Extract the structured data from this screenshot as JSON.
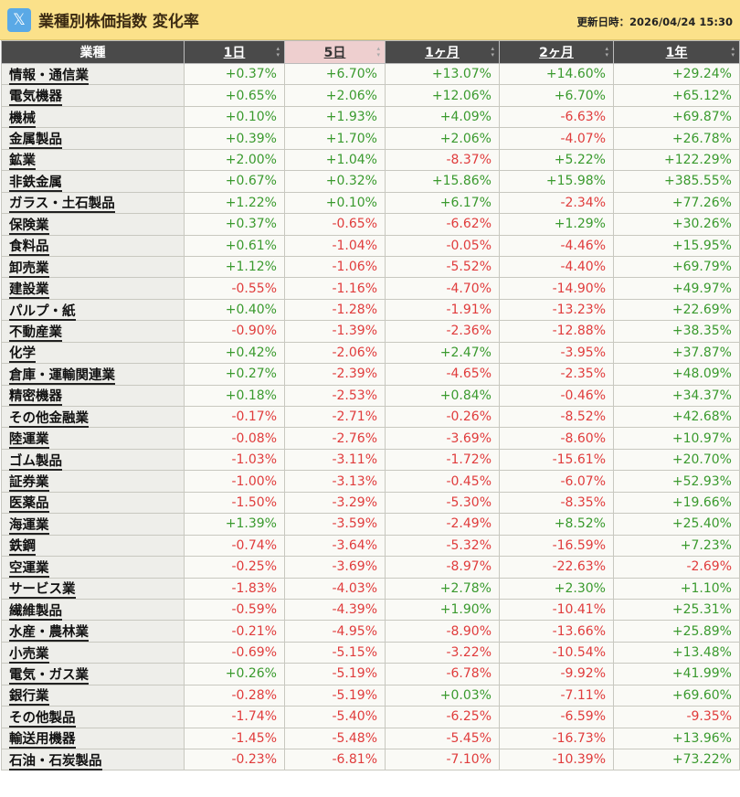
{
  "header": {
    "logo_icon": "x-icon",
    "logo_text": "𝕏",
    "title": "業種別株価指数 変化率",
    "updated": "更新日時：2026/04/24 15:30"
  },
  "colors": {
    "positive": "#3a9a2e",
    "negative": "#e03c3c",
    "header_bg": "#fbe18a",
    "selected_column": "#eecfcf"
  },
  "table": {
    "columns": [
      "業種",
      "1日",
      "5日",
      "1ヶ月",
      "2ヶ月",
      "1年"
    ],
    "sorted_column": "5日",
    "rows": [
      [
        "情報・通信業",
        "+0.37%",
        "+6.70%",
        "+13.07%",
        "+14.60%",
        "+29.24%"
      ],
      [
        "電気機器",
        "+0.65%",
        "+2.06%",
        "+12.06%",
        "+6.70%",
        "+65.12%"
      ],
      [
        "機械",
        "+0.10%",
        "+1.93%",
        "+4.09%",
        "-6.63%",
        "+69.87%"
      ],
      [
        "金属製品",
        "+0.39%",
        "+1.70%",
        "+2.06%",
        "-4.07%",
        "+26.78%"
      ],
      [
        "鉱業",
        "+2.00%",
        "+1.04%",
        "-8.37%",
        "+5.22%",
        "+122.29%"
      ],
      [
        "非鉄金属",
        "+0.67%",
        "+0.32%",
        "+15.86%",
        "+15.98%",
        "+385.55%"
      ],
      [
        "ガラス・土石製品",
        "+1.22%",
        "+0.10%",
        "+6.17%",
        "-2.34%",
        "+77.26%"
      ],
      [
        "保険業",
        "+0.37%",
        "-0.65%",
        "-6.62%",
        "+1.29%",
        "+30.26%"
      ],
      [
        "食料品",
        "+0.61%",
        "-1.04%",
        "-0.05%",
        "-4.46%",
        "+15.95%"
      ],
      [
        "卸売業",
        "+1.12%",
        "-1.06%",
        "-5.52%",
        "-4.40%",
        "+69.79%"
      ],
      [
        "建設業",
        "-0.55%",
        "-1.16%",
        "-4.70%",
        "-14.90%",
        "+49.97%"
      ],
      [
        "パルプ・紙",
        "+0.40%",
        "-1.28%",
        "-1.91%",
        "-13.23%",
        "+22.69%"
      ],
      [
        "不動産業",
        "-0.90%",
        "-1.39%",
        "-2.36%",
        "-12.88%",
        "+38.35%"
      ],
      [
        "化学",
        "+0.42%",
        "-2.06%",
        "+2.47%",
        "-3.95%",
        "+37.87%"
      ],
      [
        "倉庫・運輸関連業",
        "+0.27%",
        "-2.39%",
        "-4.65%",
        "-2.35%",
        "+48.09%"
      ],
      [
        "精密機器",
        "+0.18%",
        "-2.53%",
        "+0.84%",
        "-0.46%",
        "+34.37%"
      ],
      [
        "その他金融業",
        "-0.17%",
        "-2.71%",
        "-0.26%",
        "-8.52%",
        "+42.68%"
      ],
      [
        "陸運業",
        "-0.08%",
        "-2.76%",
        "-3.69%",
        "-8.60%",
        "+10.97%"
      ],
      [
        "ゴム製品",
        "-1.03%",
        "-3.11%",
        "-1.72%",
        "-15.61%",
        "+20.70%"
      ],
      [
        "証券業",
        "-1.00%",
        "-3.13%",
        "-0.45%",
        "-6.07%",
        "+52.93%"
      ],
      [
        "医薬品",
        "-1.50%",
        "-3.29%",
        "-5.30%",
        "-8.35%",
        "+19.66%"
      ],
      [
        "海運業",
        "+1.39%",
        "-3.59%",
        "-2.49%",
        "+8.52%",
        "+25.40%"
      ],
      [
        "鉄鋼",
        "-0.74%",
        "-3.64%",
        "-5.32%",
        "-16.59%",
        "+7.23%"
      ],
      [
        "空運業",
        "-0.25%",
        "-3.69%",
        "-8.97%",
        "-22.63%",
        "-2.69%"
      ],
      [
        "サービス業",
        "-1.83%",
        "-4.03%",
        "+2.78%",
        "+2.30%",
        "+1.10%"
      ],
      [
        "繊維製品",
        "-0.59%",
        "-4.39%",
        "+1.90%",
        "-10.41%",
        "+25.31%"
      ],
      [
        "水産・農林業",
        "-0.21%",
        "-4.95%",
        "-8.90%",
        "-13.66%",
        "+25.89%"
      ],
      [
        "小売業",
        "-0.69%",
        "-5.15%",
        "-3.22%",
        "-10.54%",
        "+13.48%"
      ],
      [
        "電気・ガス業",
        "+0.26%",
        "-5.19%",
        "-6.78%",
        "-9.92%",
        "+41.99%"
      ],
      [
        "銀行業",
        "-0.28%",
        "-5.19%",
        "+0.03%",
        "-7.11%",
        "+69.60%"
      ],
      [
        "その他製品",
        "-1.74%",
        "-5.40%",
        "-6.25%",
        "-6.59%",
        "-9.35%"
      ],
      [
        "輸送用機器",
        "-1.45%",
        "-5.48%",
        "-5.45%",
        "-16.73%",
        "+13.96%"
      ],
      [
        "石油・石炭製品",
        "-0.23%",
        "-6.81%",
        "-7.10%",
        "-10.39%",
        "+73.22%"
      ]
    ]
  }
}
